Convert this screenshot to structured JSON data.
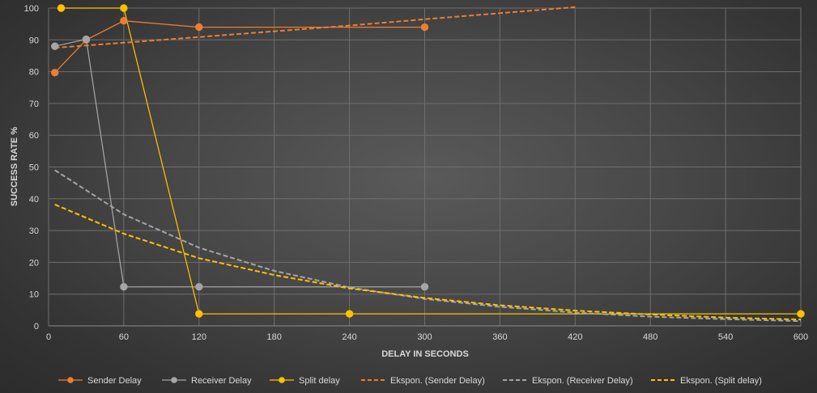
{
  "chart_data": {
    "type": "line",
    "title": "",
    "xlabel": "DELAY IN SECONDS",
    "ylabel": "SUCCESS RATE %",
    "xlim": [
      0,
      600
    ],
    "ylim": [
      0,
      100
    ],
    "x_ticks": [
      "0",
      "60",
      "120",
      "180",
      "240",
      "300",
      "360",
      "420",
      "480",
      "540",
      "600"
    ],
    "y_ticks": [
      "0",
      "10",
      "20",
      "30",
      "40",
      "50",
      "60",
      "70",
      "80",
      "90",
      "100"
    ],
    "grid": true,
    "legend_position": "bottom",
    "series": [
      {
        "name": "Sender Delay",
        "kind": "line-markers",
        "color": "#ed7d31",
        "points": [
          [
            5,
            79.7
          ],
          [
            30,
            90
          ],
          [
            60,
            96
          ],
          [
            120,
            94
          ],
          [
            300,
            94
          ]
        ]
      },
      {
        "name": "Receiver Delay",
        "kind": "line-markers",
        "color": "#a5a5a5",
        "points": [
          [
            5,
            88
          ],
          [
            30,
            90.2
          ],
          [
            60,
            12.3
          ],
          [
            120,
            12.3
          ],
          [
            300,
            12.3
          ]
        ]
      },
      {
        "name": "Split delay",
        "kind": "line-markers",
        "color": "#ffc000",
        "points": [
          [
            10,
            100
          ],
          [
            60,
            100
          ],
          [
            120,
            3.8
          ],
          [
            240,
            3.8
          ],
          [
            600,
            3.8
          ]
        ]
      },
      {
        "name": "Ekspon. (Sender Delay)",
        "kind": "trendline",
        "color": "#ed7d31",
        "points": [
          [
            5,
            87.5
          ],
          [
            60,
            89.1
          ],
          [
            120,
            90.9
          ],
          [
            180,
            92.7
          ],
          [
            240,
            94.5
          ],
          [
            300,
            96.5
          ],
          [
            360,
            98.4
          ],
          [
            420,
            100.3
          ]
        ]
      },
      {
        "name": "Ekspon. (Receiver Delay)",
        "kind": "trendline",
        "color": "#a5a5a5",
        "points": [
          [
            5,
            49
          ],
          [
            60,
            35.1
          ],
          [
            120,
            24.6
          ],
          [
            180,
            17.3
          ],
          [
            240,
            12.1
          ],
          [
            300,
            8.5
          ],
          [
            360,
            6
          ],
          [
            420,
            4.2
          ],
          [
            480,
            2.9
          ],
          [
            540,
            2.1
          ],
          [
            600,
            1.5
          ]
        ]
      },
      {
        "name": "Ekspon. (Split delay)",
        "kind": "trendline",
        "color": "#ffc000",
        "points": [
          [
            5,
            38.2
          ],
          [
            60,
            29
          ],
          [
            120,
            21.3
          ],
          [
            180,
            16
          ],
          [
            240,
            11.8
          ],
          [
            300,
            8.8
          ],
          [
            360,
            6.5
          ],
          [
            420,
            4.8
          ],
          [
            480,
            3.6
          ],
          [
            540,
            2.6
          ],
          [
            600,
            2
          ]
        ]
      }
    ]
  }
}
